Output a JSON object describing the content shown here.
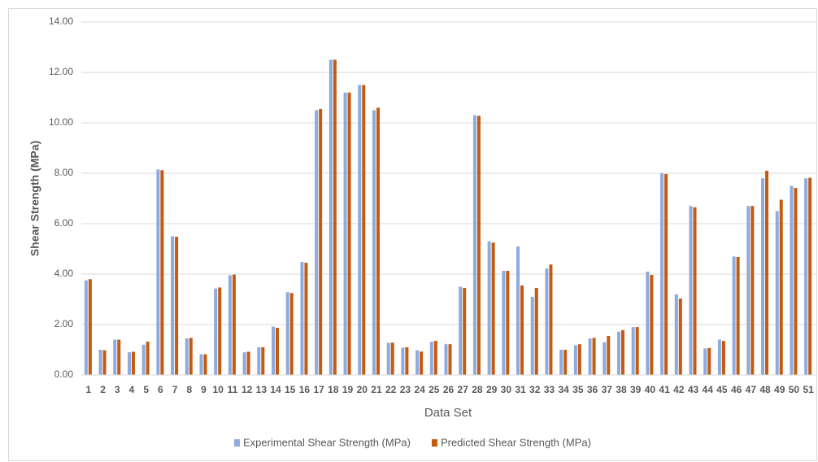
{
  "chart_data": {
    "type": "bar",
    "x_label": "Data Set",
    "y_label": "Shear Strength (MPa)",
    "categories": [
      "1",
      "2",
      "3",
      "4",
      "5",
      "6",
      "7",
      "8",
      "9",
      "10",
      "11",
      "12",
      "13",
      "14",
      "15",
      "16",
      "17",
      "18",
      "19",
      "20",
      "21",
      "22",
      "23",
      "24",
      "25",
      "26",
      "27",
      "28",
      "29",
      "30",
      "31",
      "32",
      "33",
      "34",
      "35",
      "36",
      "37",
      "38",
      "39",
      "40",
      "41",
      "42",
      "43",
      "44",
      "45",
      "46",
      "47",
      "48",
      "49",
      "50",
      "51"
    ],
    "series": [
      {
        "name": "Experimental Shear Strength (MPa)",
        "color": "#8faadc",
        "values": [
          3.75,
          1.0,
          1.4,
          0.9,
          1.2,
          8.15,
          5.5,
          1.45,
          0.82,
          3.43,
          3.95,
          0.9,
          1.1,
          1.92,
          3.28,
          4.48,
          10.5,
          12.5,
          11.2,
          11.5,
          10.5,
          1.28,
          1.08,
          0.98,
          1.32,
          1.22,
          3.5,
          10.3,
          5.3,
          4.13,
          5.1,
          3.1,
          4.22,
          1.0,
          1.18,
          1.45,
          1.3,
          1.72,
          1.9,
          4.1,
          8.0,
          3.2,
          6.7,
          1.05,
          1.4,
          4.7,
          6.7,
          7.8,
          6.5,
          7.5,
          7.8
        ]
      },
      {
        "name": "Predicted Shear Strength (MPa)",
        "color": "#c55a11",
        "values": [
          3.8,
          0.98,
          1.4,
          0.92,
          1.32,
          8.12,
          5.48,
          1.47,
          0.82,
          3.47,
          3.98,
          0.92,
          1.1,
          1.87,
          3.25,
          4.45,
          10.55,
          12.5,
          11.2,
          11.5,
          10.6,
          1.28,
          1.1,
          0.93,
          1.35,
          1.22,
          3.45,
          10.28,
          5.25,
          4.13,
          3.55,
          3.45,
          4.38,
          1.0,
          1.22,
          1.47,
          1.55,
          1.78,
          1.9,
          3.97,
          7.97,
          3.03,
          6.65,
          1.07,
          1.35,
          4.68,
          6.7,
          8.1,
          6.95,
          7.42,
          7.82
        ]
      }
    ],
    "ylim": [
      0,
      14
    ],
    "yticks": [
      {
        "value": 0,
        "label": "0.00"
      },
      {
        "value": 2,
        "label": "2.00"
      },
      {
        "value": 4,
        "label": "4.00"
      },
      {
        "value": 6,
        "label": "6.00"
      },
      {
        "value": 8,
        "label": "8.00"
      },
      {
        "value": 10,
        "label": "10.00"
      },
      {
        "value": 12,
        "label": "12.00"
      },
      {
        "value": 14,
        "label": "14.00"
      }
    ],
    "grid": true,
    "legend": "bottom"
  }
}
